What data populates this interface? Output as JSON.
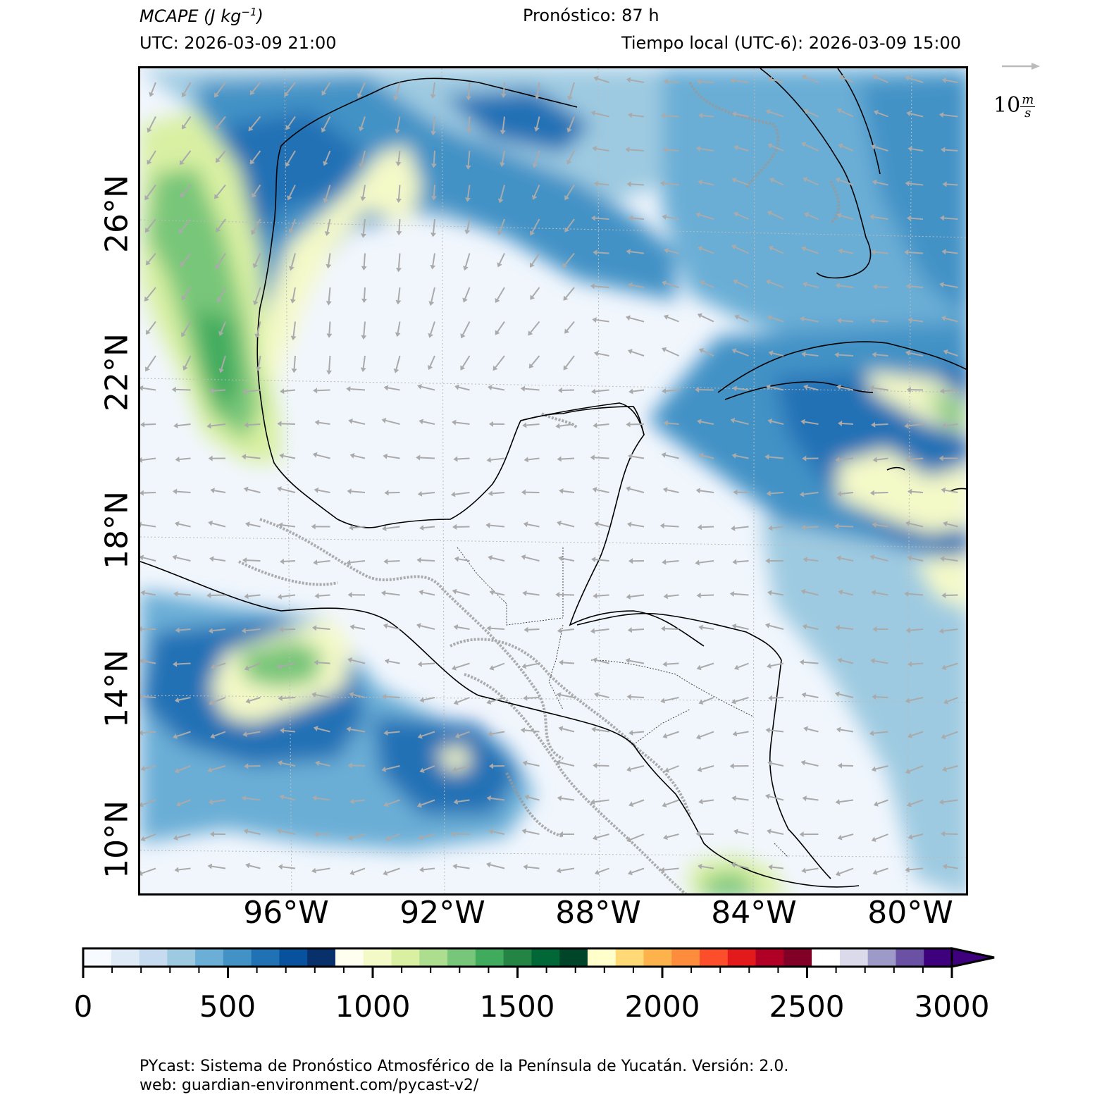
{
  "header": {
    "variable": "MCAPE",
    "units_open": "(J kg",
    "units_exp": "−1",
    "units_close": ")",
    "forecast": "Pronóstico: 87 h",
    "utc": "UTC:  2026-03-09 21:00",
    "local_time": "Tiempo local (UTC-6): 2026-03-09 15:00"
  },
  "axes": {
    "lat_labels": [
      "26°N",
      "22°N",
      "18°N",
      "14°N",
      "10°N"
    ],
    "lon_labels": [
      "96°W",
      "92°W",
      "88°W",
      "84°W",
      "80°W"
    ]
  },
  "wind_reference": {
    "value": "10",
    "unit_num": "m",
    "unit_den": "s"
  },
  "colorbar": {
    "ticks": [
      "0",
      "500",
      "1000",
      "1500",
      "2000",
      "2500",
      "3000"
    ],
    "min": 0,
    "max": 3000,
    "step": 100,
    "extend": "max",
    "colors": [
      "#f7fbff",
      "#deebf7",
      "#c6dbef",
      "#9ecae1",
      "#6baed6",
      "#4292c6",
      "#2171b5",
      "#08519c",
      "#08306b",
      "#fffff0",
      "#f4f9c8",
      "#d9f0a3",
      "#addd8e",
      "#78c679",
      "#41ab5d",
      "#238443",
      "#006837",
      "#004529",
      "#ffffcc",
      "#fed976",
      "#feb24c",
      "#fd8d3c",
      "#fc4e2a",
      "#e31a1c",
      "#b10026",
      "#800026",
      "#ffffff",
      "#dadaeb",
      "#9e9ac8",
      "#6a51a3",
      "#3f007d"
    ]
  },
  "colors": {
    "ocean_low": "#f1f6fd",
    "blue_mid": "#6baed6",
    "blue_dark": "#2171b5",
    "yellow": "#f4f9c8",
    "green": "#78c679",
    "green_dark": "#238443",
    "wind_arrow": "#aaaaaa",
    "coast": "#000000",
    "terrain": "#999999"
  },
  "footer": {
    "line1": "PYcast: Sistema de Pronóstico Atmosférico de la Península de Yucatán. Versión: 2.0.",
    "line2": "web: guardian-environment.com/pycast-v2/"
  }
}
